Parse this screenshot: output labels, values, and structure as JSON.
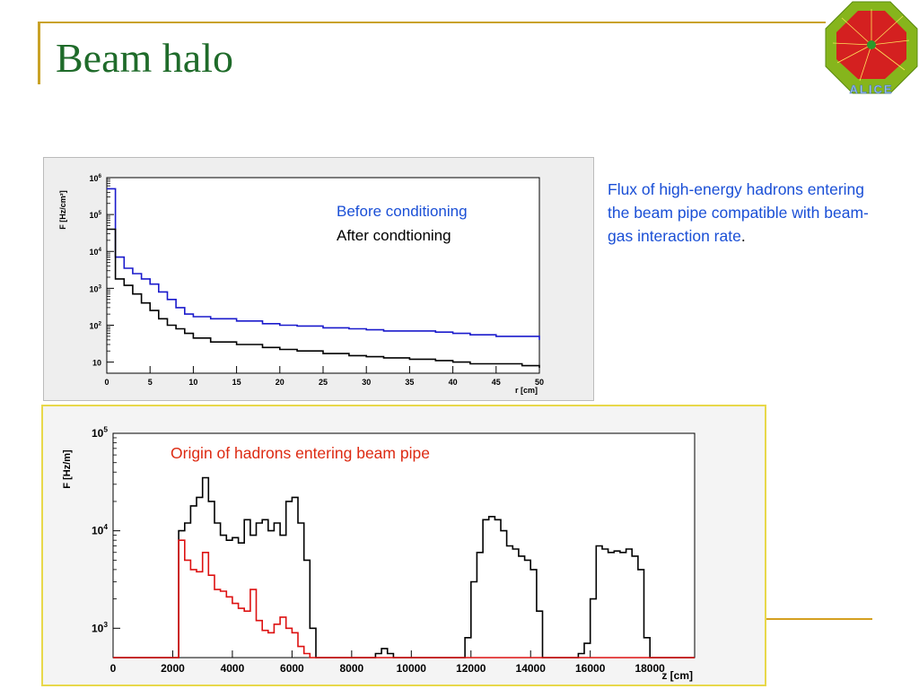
{
  "slide": {
    "title": "Beam halo",
    "description": "Flux of high-energy hadrons entering the beam pipe compatible with beam-gas interaction rate",
    "description_end": ".",
    "logo_text": "ALICE"
  },
  "colors": {
    "title": "#1f6b2a",
    "accent_line": "#c9a227",
    "blue_series": "#1a1acc",
    "black_series": "#000000",
    "red_series": "#dd1111",
    "description_text": "#1a4fd6",
    "origin_label": "#dd2a12"
  },
  "chart_data": [
    {
      "type": "line",
      "ylabel": "F [Hz/cm²]",
      "xlabel": "r [cm]",
      "xlim": [
        0,
        50
      ],
      "ylim": [
        5,
        1000000
      ],
      "yscale": "log",
      "xticks": [
        "0",
        "5",
        "10",
        "15",
        "20",
        "25",
        "30",
        "35",
        "40",
        "45",
        "50"
      ],
      "yticks": [
        {
          "value": 10,
          "base": "10",
          "exp": ""
        },
        {
          "value": 100,
          "base": "10",
          "exp": "2"
        },
        {
          "value": 1000,
          "base": "10",
          "exp": "3"
        },
        {
          "value": 10000,
          "base": "10",
          "exp": "4"
        },
        {
          "value": 100000,
          "base": "10",
          "exp": "5"
        },
        {
          "value": 1000000,
          "base": "10",
          "exp": "6"
        }
      ],
      "legend": [
        {
          "label": "Before conditioning",
          "color": "#1a4fd6"
        },
        {
          "label": "After condtioning",
          "color": "#000000"
        }
      ],
      "series": [
        {
          "color": "#1a1acc",
          "x": [
            0,
            1,
            2,
            3,
            4,
            5,
            6,
            7,
            8,
            9,
            10,
            12,
            15,
            18,
            20,
            22,
            25,
            28,
            30,
            32,
            35,
            38,
            40,
            42,
            45,
            48,
            50
          ],
          "y": [
            500000,
            7000,
            3500,
            2500,
            1800,
            1300,
            800,
            500,
            300,
            200,
            170,
            150,
            130,
            110,
            100,
            95,
            85,
            80,
            75,
            70,
            70,
            65,
            60,
            55,
            50,
            50,
            40
          ]
        },
        {
          "color": "#000000",
          "x": [
            0,
            1,
            2,
            3,
            4,
            5,
            6,
            7,
            8,
            9,
            10,
            12,
            15,
            18,
            20,
            22,
            25,
            28,
            30,
            32,
            35,
            38,
            40,
            42,
            45,
            48,
            50
          ],
          "y": [
            40000,
            1800,
            1200,
            700,
            400,
            250,
            150,
            100,
            80,
            60,
            45,
            35,
            30,
            25,
            22,
            20,
            17,
            15,
            14,
            13,
            12,
            11,
            10,
            9,
            9,
            8,
            7
          ]
        }
      ]
    },
    {
      "type": "line",
      "ylabel": "F [Hz/m]",
      "xlabel": "z [cm]",
      "xlim": [
        0,
        19500
      ],
      "ylim": [
        500,
        100000
      ],
      "yscale": "log",
      "xticks": [
        "0",
        "2000",
        "4000",
        "6000",
        "8000",
        "10000",
        "12000",
        "14000",
        "16000",
        "18000"
      ],
      "yticks": [
        {
          "value": 1000,
          "base": "10",
          "exp": "3"
        },
        {
          "value": 10000,
          "base": "10",
          "exp": "4"
        },
        {
          "value": 100000,
          "base": "10",
          "exp": "5"
        }
      ],
      "annotation": "Origin of hadrons entering beam pipe",
      "series": [
        {
          "color": "#000000",
          "x": [
            0,
            2150,
            2200,
            2400,
            2600,
            2800,
            3000,
            3200,
            3400,
            3600,
            3800,
            4000,
            4200,
            4400,
            4600,
            4800,
            5000,
            5200,
            5400,
            5600,
            5800,
            6000,
            6200,
            6400,
            6600,
            6800,
            7000,
            8500,
            8800,
            9000,
            9200,
            9400,
            11600,
            11800,
            12000,
            12200,
            12400,
            12600,
            12800,
            13000,
            13200,
            13400,
            13600,
            13800,
            14000,
            14200,
            14400,
            15400,
            15600,
            15800,
            16000,
            16200,
            16400,
            16600,
            16800,
            17000,
            17200,
            17400,
            17600,
            17800,
            18000,
            19500
          ],
          "y": [
            500,
            500,
            10000,
            12000,
            18000,
            22000,
            35000,
            20000,
            12000,
            9000,
            8000,
            8500,
            7500,
            13000,
            9000,
            12000,
            13000,
            10000,
            12000,
            9000,
            20000,
            22000,
            12000,
            5000,
            1000,
            500,
            500,
            500,
            550,
            620,
            550,
            500,
            500,
            800,
            3000,
            6000,
            13000,
            14000,
            13000,
            10000,
            7000,
            6500,
            5500,
            5000,
            4000,
            1500,
            500,
            500,
            550,
            700,
            2000,
            7000,
            6500,
            6000,
            6200,
            6000,
            6500,
            5500,
            4000,
            800,
            500,
            500
          ]
        },
        {
          "color": "#dd1111",
          "x": [
            0,
            2150,
            2200,
            2400,
            2600,
            2800,
            3000,
            3200,
            3400,
            3600,
            3800,
            4000,
            4200,
            4400,
            4600,
            4800,
            5000,
            5200,
            5400,
            5600,
            5800,
            6000,
            6200,
            6400,
            6600,
            6800,
            19500
          ],
          "y": [
            500,
            500,
            8000,
            5000,
            4000,
            3800,
            6000,
            3500,
            2500,
            2400,
            2100,
            1800,
            1600,
            1500,
            2500,
            1200,
            950,
            900,
            1100,
            1300,
            1000,
            900,
            650,
            550,
            500,
            500,
            500
          ]
        }
      ]
    }
  ]
}
